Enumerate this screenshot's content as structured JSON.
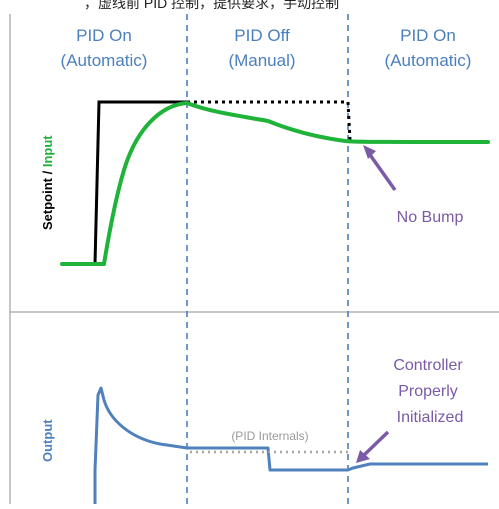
{
  "caption_fragment": "，虚线前 PID 控制，提供要求，手动控制",
  "phases": [
    {
      "line1": "PID On",
      "line2": "(Automatic)"
    },
    {
      "line1": "PID Off",
      "line2": "(Manual)"
    },
    {
      "line1": "PID On",
      "line2": "(Automatic)"
    }
  ],
  "top_axis": {
    "setpoint": "Setpoint",
    "separator": " / ",
    "input": "Input"
  },
  "bottom_axis": {
    "label": "Output"
  },
  "annotations": {
    "no_bump": "No Bump",
    "controller_line1": "Controller",
    "controller_line2": "Properly",
    "controller_line3": "Initialized",
    "pid_internals": "(PID Internals)"
  },
  "colors": {
    "setpoint": "#000000",
    "input": "#1fb33a",
    "output": "#4f81bd",
    "divider": "#4a7fc0",
    "annotation": "#7b5aa6",
    "internals": "#a6a6a6",
    "frame": "#8c8c8c"
  }
}
